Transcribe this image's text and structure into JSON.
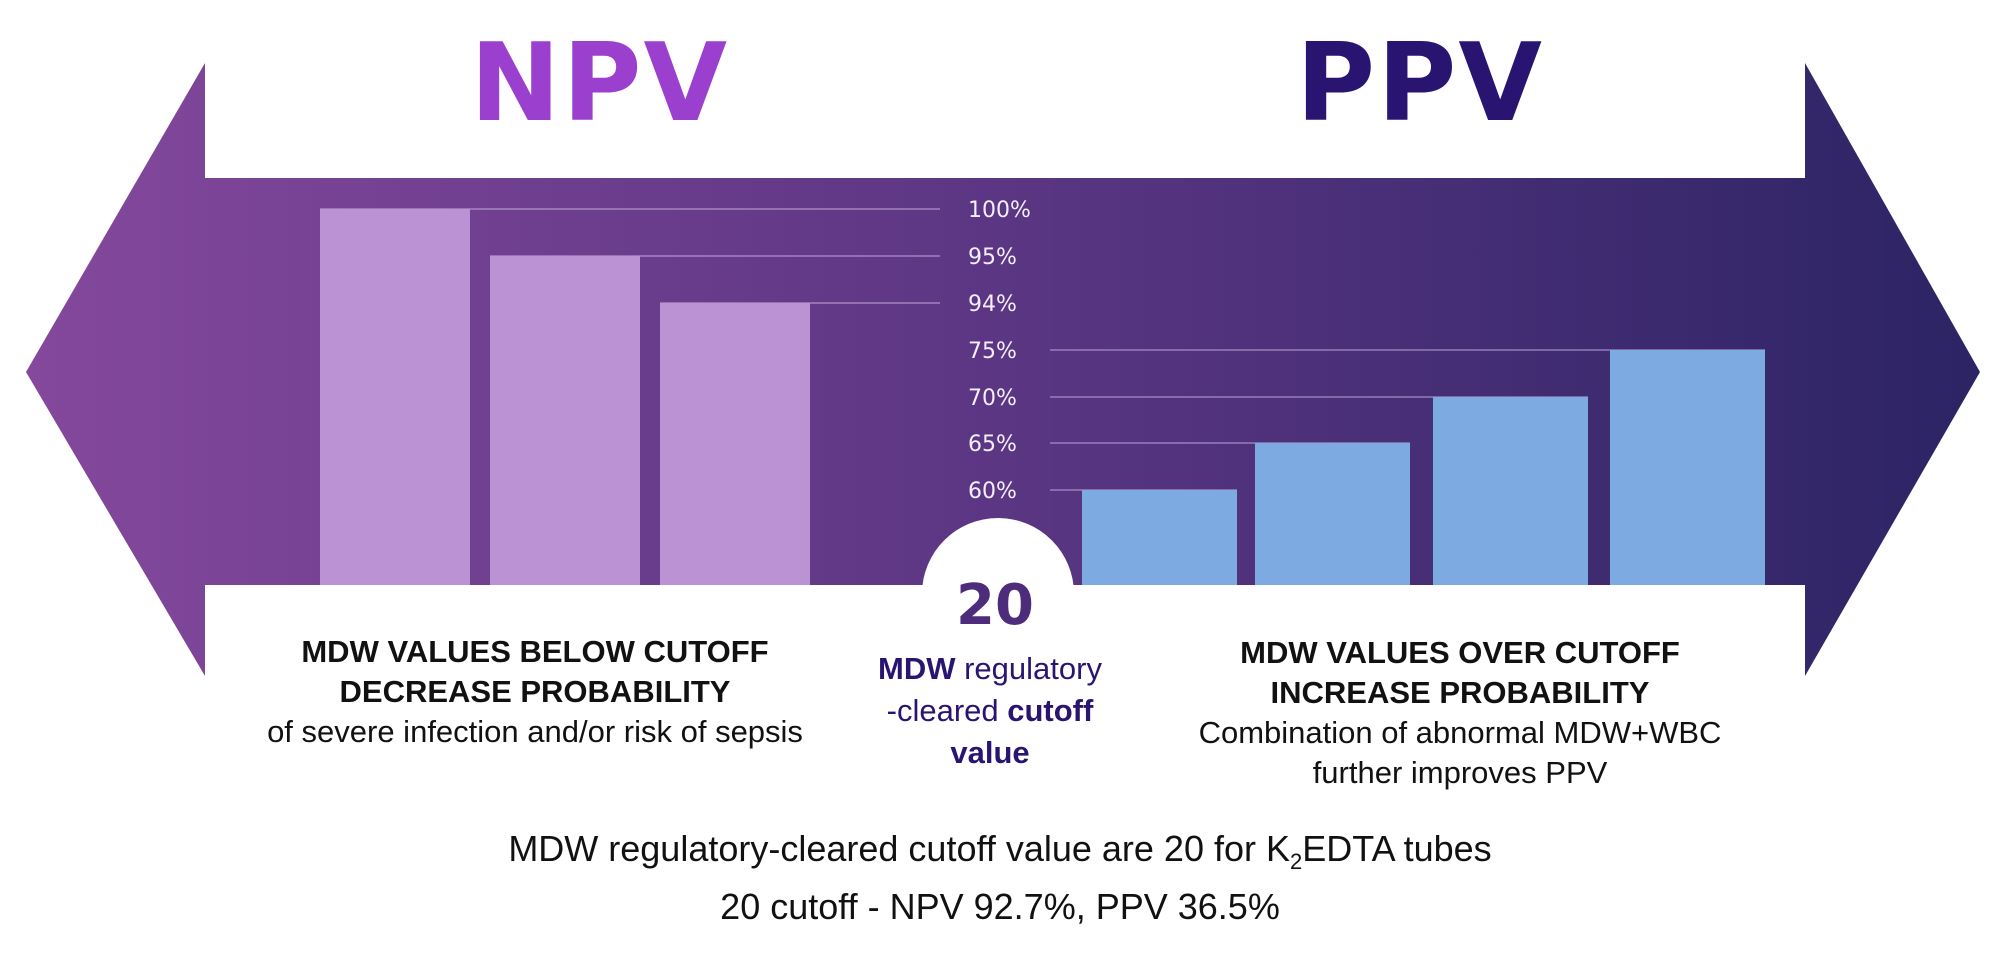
{
  "headings": {
    "left": "NPV",
    "right": "PPV"
  },
  "center": {
    "value": "20",
    "label_part1": "MDW",
    "label_part2": " regulatory",
    "label_part3": "-cleared ",
    "label_part4": "cutoff",
    "label_part5": "value"
  },
  "left_caption": {
    "line1": "MDW VALUES BELOW CUTOFF",
    "line2": "DECREASE PROBABILITY",
    "line3": "of severe infection and/or risk of sepsis"
  },
  "right_caption": {
    "line1": "MDW VALUES OVER CUTOFF",
    "line2": "INCREASE PROBABILITY",
    "line3": "Combination of abnormal MDW+WBC",
    "line4": "further improves PPV"
  },
  "footer": {
    "line1_a": "MDW regulatory-cleared cutoff value are 20 for K",
    "line1_sub": "2",
    "line1_b": "EDTA tubes",
    "line2": "20 cutoff - NPV 92.7%, PPV 36.5%"
  },
  "chart_data": [
    {
      "type": "bar",
      "name": "NPV",
      "values": [
        100,
        95,
        94
      ],
      "value_labels": [
        "100%",
        "95%",
        "94%"
      ],
      "color": "#bb92d3"
    },
    {
      "type": "bar",
      "name": "PPV",
      "values": [
        60,
        65,
        70,
        75
      ],
      "value_labels": [
        "60%",
        "65%",
        "70%",
        "75%"
      ],
      "color": "#7eaae2"
    }
  ],
  "colors": {
    "arrow_left": "#84489c",
    "arrow_right": "#2c2464",
    "npv_heading": "#9b3fcf",
    "ppv_heading": "#2a1472"
  }
}
